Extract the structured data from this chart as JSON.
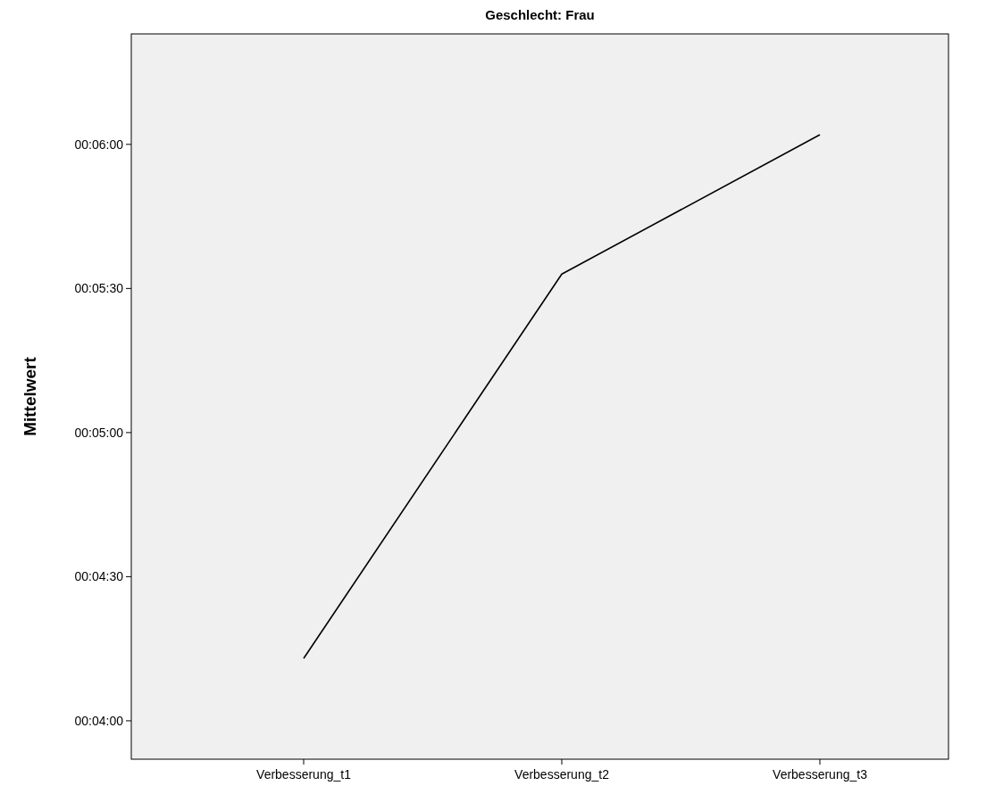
{
  "chart_data": {
    "type": "line",
    "title": "Geschlecht: Frau",
    "ylabel": "Mittelwert",
    "categories": [
      "Verbesserung_t1",
      "Verbesserung_t2",
      "Verbesserung_t3"
    ],
    "series": [
      {
        "color": "#000000",
        "values": [
          253,
          333,
          362
        ]
      }
    ],
    "ylim": [
      232,
      383
    ],
    "yticks": [
      {
        "value": 240,
        "label": "00:04:00"
      },
      {
        "value": 270,
        "label": "00:04:30"
      },
      {
        "value": 300,
        "label": "00:05:00"
      },
      {
        "value": 330,
        "label": "00:05:30"
      },
      {
        "value": 360,
        "label": "00:06:00"
      }
    ],
    "grid": false,
    "marker": "none",
    "line_style": "solid"
  }
}
